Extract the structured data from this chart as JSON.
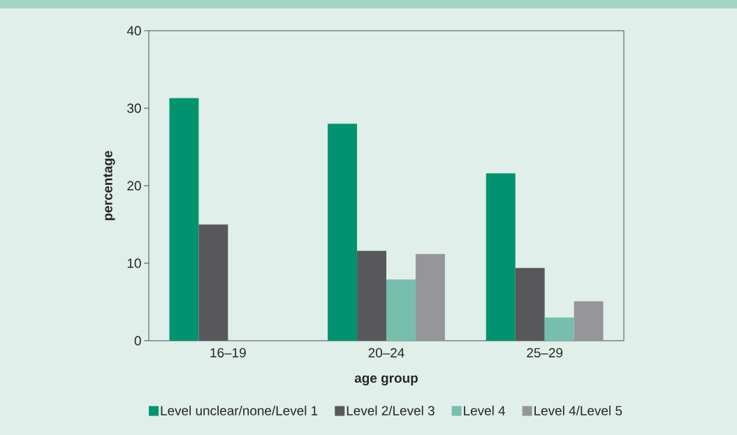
{
  "chart_data": {
    "type": "bar",
    "xlabel": "age group",
    "ylabel": "percentage",
    "categories": [
      "16–19",
      "20–24",
      "25–29"
    ],
    "series": [
      {
        "name": "Level unclear/none/Level 1",
        "color": "#009370",
        "values": [
          31.3,
          28.0,
          21.6
        ]
      },
      {
        "name": "Level 2/Level 3",
        "color": "#58585a",
        "values": [
          15.0,
          11.6,
          9.4
        ]
      },
      {
        "name": "Level 4",
        "color": "#76bfad",
        "values": [
          null,
          7.9,
          3.0
        ]
      },
      {
        "name": "Level 4/Level 5",
        "color": "#96969a",
        "values": [
          null,
          11.2,
          5.1
        ]
      }
    ],
    "ylim": [
      0,
      40
    ],
    "yticks": [
      0,
      10,
      20,
      30,
      40
    ],
    "legend": "bottom"
  }
}
